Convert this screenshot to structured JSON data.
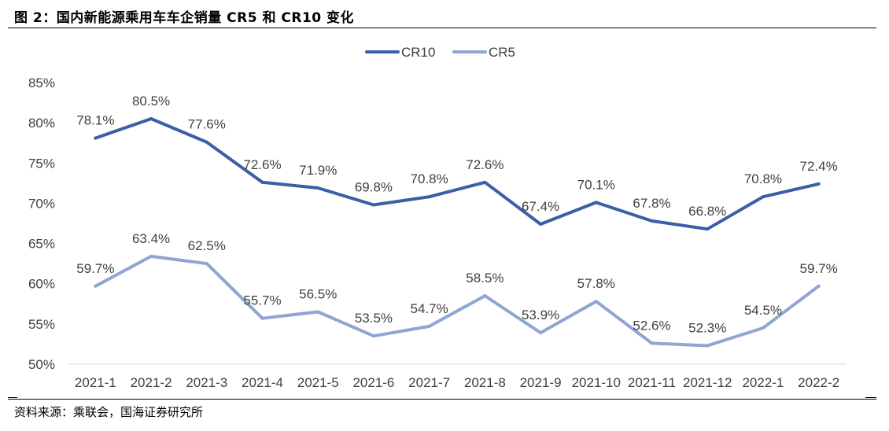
{
  "title": "图 2：国内新能源乘用车车企销量 CR5 和 CR10 变化",
  "source": "资料来源：乘联会，国海证券研究所",
  "chart_data": {
    "type": "line",
    "categories": [
      "2021-1",
      "2021-2",
      "2021-3",
      "2021-4",
      "2021-5",
      "2021-6",
      "2021-7",
      "2021-8",
      "2021-9",
      "2021-10",
      "2021-11",
      "2021-12",
      "2022-1",
      "2022-2"
    ],
    "ylim": [
      50,
      85
    ],
    "yticks": [
      "50%",
      "55%",
      "60%",
      "65%",
      "70%",
      "75%",
      "80%",
      "85%"
    ],
    "grid": false,
    "legend_position": "top-center",
    "series": [
      {
        "name": "CR10",
        "color": "#3a5fa6",
        "values": [
          78.1,
          80.5,
          77.6,
          72.6,
          71.9,
          69.8,
          70.8,
          72.6,
          67.4,
          70.1,
          67.8,
          66.8,
          70.8,
          72.4
        ],
        "labels": [
          "78.1%",
          "80.5%",
          "77.6%",
          "72.6%",
          "71.9%",
          "69.8%",
          "70.8%",
          "72.6%",
          "67.4%",
          "70.1%",
          "67.8%",
          "66.8%",
          "70.8%",
          "72.4%"
        ]
      },
      {
        "name": "CR5",
        "color": "#8fa5d4",
        "values": [
          59.7,
          63.4,
          62.5,
          55.7,
          56.5,
          53.5,
          54.7,
          58.5,
          53.9,
          57.8,
          52.6,
          52.3,
          54.5,
          59.7
        ],
        "labels": [
          "59.7%",
          "63.4%",
          "62.5%",
          "55.7%",
          "56.5%",
          "53.5%",
          "54.7%",
          "58.5%",
          "53.9%",
          "57.8%",
          "52.6%",
          "52.3%",
          "54.5%",
          "59.7%"
        ]
      }
    ]
  }
}
